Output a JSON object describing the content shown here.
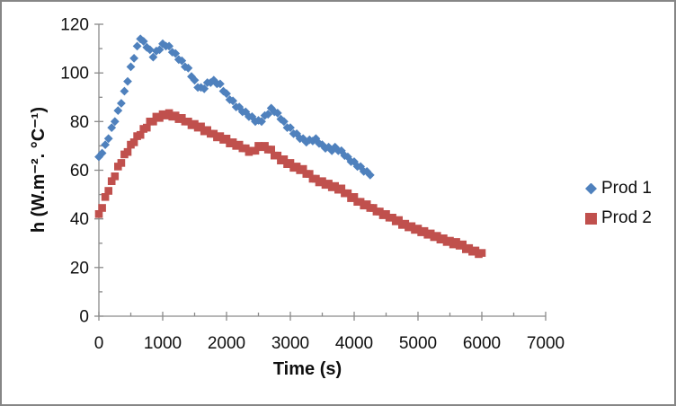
{
  "frame": {
    "border_color": "#868686",
    "background": "#ffffff"
  },
  "chart_data": {
    "type": "scatter",
    "title": "",
    "xlabel": "Time (s)",
    "ylabel": "h (W.m⁻². °C⁻¹)",
    "xlim": [
      0,
      7000
    ],
    "ylim": [
      0,
      120
    ],
    "x_major_step": 1000,
    "x_minor_step": 500,
    "y_major_step": 20,
    "y_minor_step": 10,
    "grid": false,
    "legend_position": "right",
    "axis_color": "#8a8a8a",
    "text_color": "#0f0f0f",
    "series": [
      {
        "name": "Prod 1",
        "marker": "diamond",
        "color": "#4F81BD",
        "points": [
          [
            0,
            65.5
          ],
          [
            50,
            67
          ],
          [
            100,
            70.5
          ],
          [
            150,
            73
          ],
          [
            200,
            77.5
          ],
          [
            250,
            80
          ],
          [
            300,
            84.5
          ],
          [
            350,
            87.5
          ],
          [
            400,
            92.5
          ],
          [
            450,
            96.5
          ],
          [
            500,
            102.5
          ],
          [
            550,
            106
          ],
          [
            600,
            111
          ],
          [
            650,
            114
          ],
          [
            700,
            113
          ],
          [
            750,
            110.5
          ],
          [
            800,
            109.5
          ],
          [
            850,
            106.5
          ],
          [
            900,
            109
          ],
          [
            950,
            109.5
          ],
          [
            1000,
            112
          ],
          [
            1050,
            111
          ],
          [
            1100,
            111
          ],
          [
            1150,
            108.5
          ],
          [
            1200,
            108
          ],
          [
            1250,
            105.5
          ],
          [
            1300,
            105
          ],
          [
            1350,
            102.5
          ],
          [
            1400,
            102
          ],
          [
            1450,
            98.5
          ],
          [
            1500,
            97
          ],
          [
            1550,
            94
          ],
          [
            1600,
            94
          ],
          [
            1650,
            93.5
          ],
          [
            1700,
            96
          ],
          [
            1750,
            96
          ],
          [
            1800,
            97
          ],
          [
            1850,
            95.5
          ],
          [
            1900,
            95.5
          ],
          [
            1950,
            92.5
          ],
          [
            2000,
            91.5
          ],
          [
            2050,
            89
          ],
          [
            2100,
            88.5
          ],
          [
            2150,
            86
          ],
          [
            2200,
            86
          ],
          [
            2250,
            84
          ],
          [
            2300,
            84
          ],
          [
            2350,
            82
          ],
          [
            2400,
            82
          ],
          [
            2450,
            80
          ],
          [
            2500,
            80.5
          ],
          [
            2550,
            80
          ],
          [
            2600,
            82.5
          ],
          [
            2650,
            83
          ],
          [
            2700,
            85.5
          ],
          [
            2750,
            84
          ],
          [
            2800,
            83.5
          ],
          [
            2850,
            81
          ],
          [
            2900,
            80
          ],
          [
            2950,
            77.5
          ],
          [
            3000,
            77.5
          ],
          [
            3050,
            75
          ],
          [
            3100,
            75
          ],
          [
            3150,
            73
          ],
          [
            3200,
            73
          ],
          [
            3250,
            71.5
          ],
          [
            3300,
            72.5
          ],
          [
            3350,
            72
          ],
          [
            3400,
            73
          ],
          [
            3450,
            71
          ],
          [
            3500,
            70.5
          ],
          [
            3550,
            69
          ],
          [
            3600,
            69.5
          ],
          [
            3650,
            68
          ],
          [
            3700,
            69.5
          ],
          [
            3750,
            68
          ],
          [
            3800,
            68
          ],
          [
            3850,
            66
          ],
          [
            3900,
            65.5
          ],
          [
            3950,
            63.5
          ],
          [
            4000,
            63.5
          ],
          [
            4050,
            61.5
          ],
          [
            4100,
            61.5
          ],
          [
            4150,
            59.5
          ],
          [
            4200,
            59.5
          ],
          [
            4250,
            58
          ]
        ]
      },
      {
        "name": "Prod 2",
        "marker": "square",
        "color": "#C0504D",
        "points": [
          [
            0,
            42
          ],
          [
            50,
            44.5
          ],
          [
            100,
            49
          ],
          [
            150,
            51.5
          ],
          [
            200,
            55.5
          ],
          [
            250,
            57.5
          ],
          [
            300,
            61.5
          ],
          [
            350,
            63
          ],
          [
            400,
            66.5
          ],
          [
            450,
            67.5
          ],
          [
            500,
            70.5
          ],
          [
            550,
            71.5
          ],
          [
            600,
            74
          ],
          [
            650,
            74.5
          ],
          [
            700,
            77
          ],
          [
            750,
            77.5
          ],
          [
            800,
            80
          ],
          [
            850,
            80
          ],
          [
            900,
            82
          ],
          [
            950,
            81.5
          ],
          [
            1000,
            83
          ],
          [
            1050,
            82.5
          ],
          [
            1100,
            83.5
          ],
          [
            1150,
            82
          ],
          [
            1200,
            82.5
          ],
          [
            1250,
            81
          ],
          [
            1300,
            81.5
          ],
          [
            1350,
            80
          ],
          [
            1400,
            80
          ],
          [
            1450,
            78.5
          ],
          [
            1500,
            79
          ],
          [
            1550,
            77.5
          ],
          [
            1600,
            78
          ],
          [
            1650,
            76
          ],
          [
            1700,
            76.5
          ],
          [
            1750,
            75
          ],
          [
            1800,
            75
          ],
          [
            1850,
            73.5
          ],
          [
            1900,
            74
          ],
          [
            1950,
            72.5
          ],
          [
            2000,
            73
          ],
          [
            2050,
            71
          ],
          [
            2100,
            71.5
          ],
          [
            2150,
            70
          ],
          [
            2200,
            70.5
          ],
          [
            2250,
            69
          ],
          [
            2300,
            69
          ],
          [
            2350,
            67.5
          ],
          [
            2400,
            68
          ],
          [
            2450,
            68
          ],
          [
            2500,
            70
          ],
          [
            2550,
            69.5
          ],
          [
            2600,
            70
          ],
          [
            2650,
            68.5
          ],
          [
            2700,
            68.5
          ],
          [
            2750,
            66
          ],
          [
            2800,
            66
          ],
          [
            2850,
            64
          ],
          [
            2900,
            64.5
          ],
          [
            2950,
            62.5
          ],
          [
            3000,
            63
          ],
          [
            3050,
            61
          ],
          [
            3100,
            61.5
          ],
          [
            3150,
            60
          ],
          [
            3200,
            60.5
          ],
          [
            3250,
            58.5
          ],
          [
            3300,
            58.5
          ],
          [
            3350,
            56.5
          ],
          [
            3400,
            56.5
          ],
          [
            3450,
            55
          ],
          [
            3500,
            55.5
          ],
          [
            3550,
            54
          ],
          [
            3600,
            54.5
          ],
          [
            3650,
            53
          ],
          [
            3700,
            53.5
          ],
          [
            3750,
            52
          ],
          [
            3800,
            52.5
          ],
          [
            3850,
            50.5
          ],
          [
            3900,
            50.5
          ],
          [
            3950,
            48.5
          ],
          [
            4000,
            49
          ],
          [
            4050,
            47
          ],
          [
            4100,
            47
          ],
          [
            4150,
            45.5
          ],
          [
            4200,
            46
          ],
          [
            4250,
            44.5
          ],
          [
            4300,
            44.5
          ],
          [
            4350,
            43
          ],
          [
            4400,
            43
          ],
          [
            4450,
            41.5
          ],
          [
            4500,
            42
          ],
          [
            4550,
            40.5
          ],
          [
            4600,
            40.5
          ],
          [
            4650,
            39
          ],
          [
            4700,
            39.5
          ],
          [
            4750,
            37.5
          ],
          [
            4800,
            38
          ],
          [
            4850,
            36.5
          ],
          [
            4900,
            37
          ],
          [
            4950,
            35.5
          ],
          [
            5000,
            36
          ],
          [
            5050,
            34.5
          ],
          [
            5100,
            35
          ],
          [
            5150,
            33.5
          ],
          [
            5200,
            34
          ],
          [
            5250,
            32.5
          ],
          [
            5300,
            33
          ],
          [
            5350,
            31.5
          ],
          [
            5400,
            32
          ],
          [
            5450,
            30.5
          ],
          [
            5500,
            31
          ],
          [
            5550,
            29.5
          ],
          [
            5600,
            30.5
          ],
          [
            5650,
            29
          ],
          [
            5700,
            29.5
          ],
          [
            5750,
            27.5
          ],
          [
            5800,
            28
          ],
          [
            5850,
            26.5
          ],
          [
            5900,
            27
          ],
          [
            5950,
            25.5
          ],
          [
            6000,
            26
          ]
        ]
      }
    ]
  }
}
